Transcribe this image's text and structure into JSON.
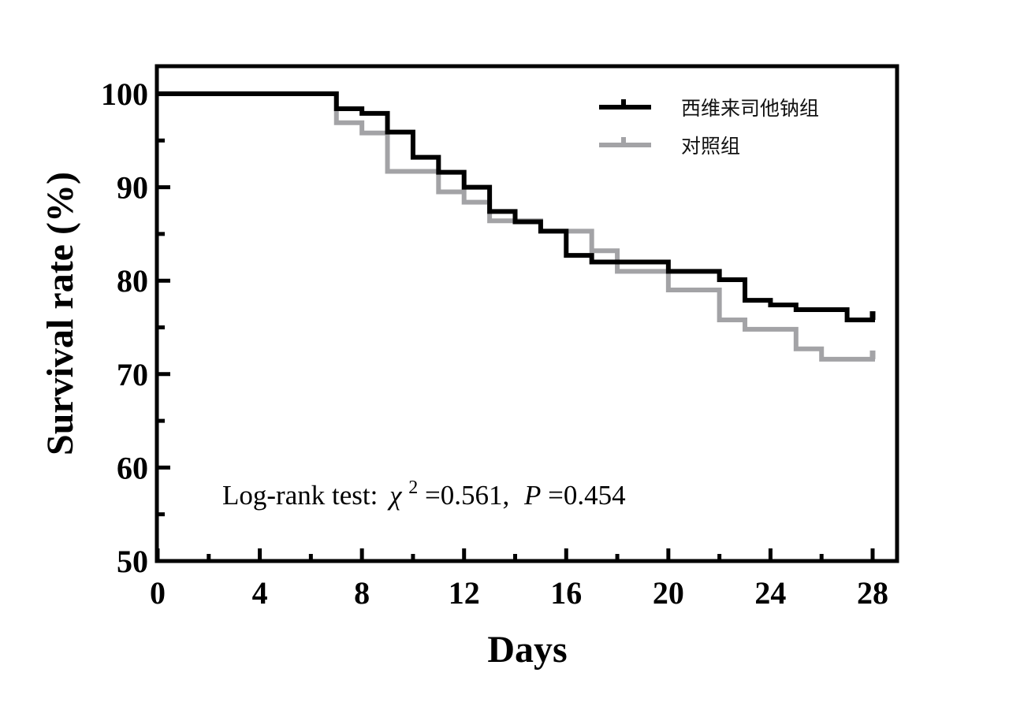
{
  "chart_data": {
    "type": "line",
    "subtype": "kaplan-meier step",
    "title": "",
    "xlabel": "Days",
    "ylabel": "Survival rate (%)",
    "xlim": [
      0,
      28
    ],
    "ylim": [
      50,
      100
    ],
    "x_ticks": [
      0,
      4,
      8,
      12,
      16,
      20,
      24,
      28
    ],
    "x_tick_labels": [
      "0",
      "4",
      "8",
      "12",
      "16",
      "20",
      "24",
      "28"
    ],
    "x_minor_ticks": [
      2,
      6,
      10,
      14,
      18,
      22,
      26
    ],
    "y_ticks": [
      50,
      60,
      70,
      80,
      90,
      100
    ],
    "y_tick_labels": [
      "50",
      "60",
      "70",
      "80",
      "90",
      "100"
    ],
    "y_minor_ticks": [
      55,
      65,
      75,
      85,
      95
    ],
    "grid": false,
    "legend_position": "top-right",
    "series": [
      {
        "name": "西维来司他钠组",
        "color": "#000000",
        "x": [
          0,
          7,
          8,
          9,
          10,
          11,
          12,
          13,
          14,
          15,
          16,
          17,
          20,
          22,
          23,
          24,
          25,
          27,
          28
        ],
        "y": [
          100,
          98.4,
          97.9,
          95.9,
          93.2,
          91.6,
          90.0,
          87.4,
          86.3,
          85.3,
          82.7,
          82.0,
          81.0,
          80.1,
          77.9,
          77.4,
          76.9,
          75.8,
          75.8
        ],
        "censored_at_end": true
      },
      {
        "name": "对照组",
        "color": "#a3a3a6",
        "x": [
          0,
          7,
          8,
          9,
          11,
          12,
          13,
          15,
          17,
          18,
          20,
          22,
          23,
          25,
          26,
          28
        ],
        "y": [
          100,
          96.9,
          95.8,
          91.7,
          89.5,
          88.4,
          86.4,
          85.3,
          83.2,
          81.0,
          79.0,
          75.8,
          74.8,
          72.7,
          71.6,
          71.6
        ],
        "censored_at_end": true
      }
    ],
    "annotation": {
      "prefix": "Log-rank test:",
      "chi_symbol": "χ",
      "chi_superscript": "2",
      "chi_value": "=0.561,",
      "p_symbol": "P",
      "p_value": "=0.454"
    }
  }
}
